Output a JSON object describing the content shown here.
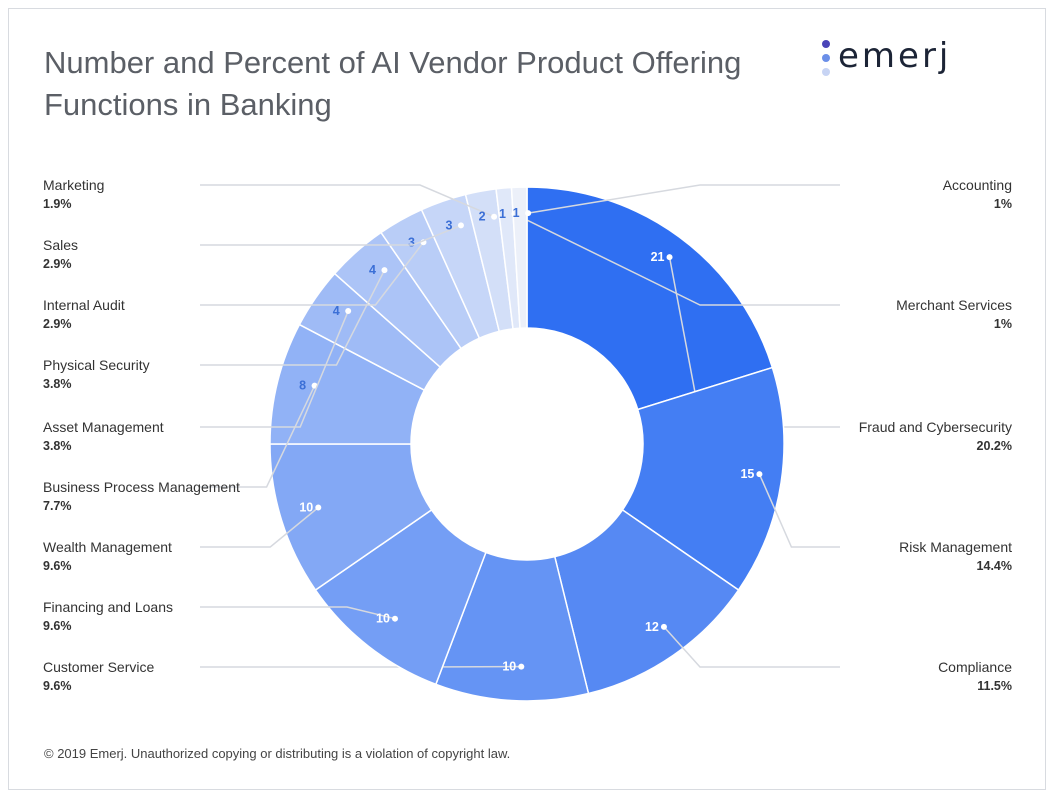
{
  "title": "Number and Percent of AI Vendor Product Offering Functions in Banking",
  "logo_text": "emerj",
  "footer": "© 2019 Emerj. Unauthorized copying or distributing is a violation of copyright law.",
  "colors": {
    "brand_dark": "#2f6ff2",
    "brand_light": "#e8edf8",
    "leader_line": "#d6d9df"
  },
  "chart_data": {
    "type": "pie",
    "variant": "donut",
    "title": "Number and Percent of AI Vendor Product Offering Functions in Banking",
    "slices": [
      {
        "label": "Fraud and Cybersecurity",
        "value": 21,
        "percent": "20.2%"
      },
      {
        "label": "Risk Management",
        "value": 15,
        "percent": "14.4%"
      },
      {
        "label": "Compliance",
        "value": 12,
        "percent": "11.5%"
      },
      {
        "label": "Customer Service",
        "value": 10,
        "percent": "9.6%"
      },
      {
        "label": "Financing and Loans",
        "value": 10,
        "percent": "9.6%"
      },
      {
        "label": "Wealth Management",
        "value": 10,
        "percent": "9.6%"
      },
      {
        "label": "Business Process Management",
        "value": 8,
        "percent": "7.7%"
      },
      {
        "label": "Asset Management",
        "value": 4,
        "percent": "3.8%"
      },
      {
        "label": "Physical Security",
        "value": 4,
        "percent": "3.8%"
      },
      {
        "label": "Internal Audit",
        "value": 3,
        "percent": "2.9%"
      },
      {
        "label": "Sales",
        "value": 3,
        "percent": "2.9%"
      },
      {
        "label": "Marketing",
        "value": 2,
        "percent": "1.9%"
      },
      {
        "label": "Merchant Services",
        "value": 1,
        "percent": "1%"
      },
      {
        "label": "Accounting",
        "value": 1,
        "percent": "1%"
      }
    ]
  }
}
